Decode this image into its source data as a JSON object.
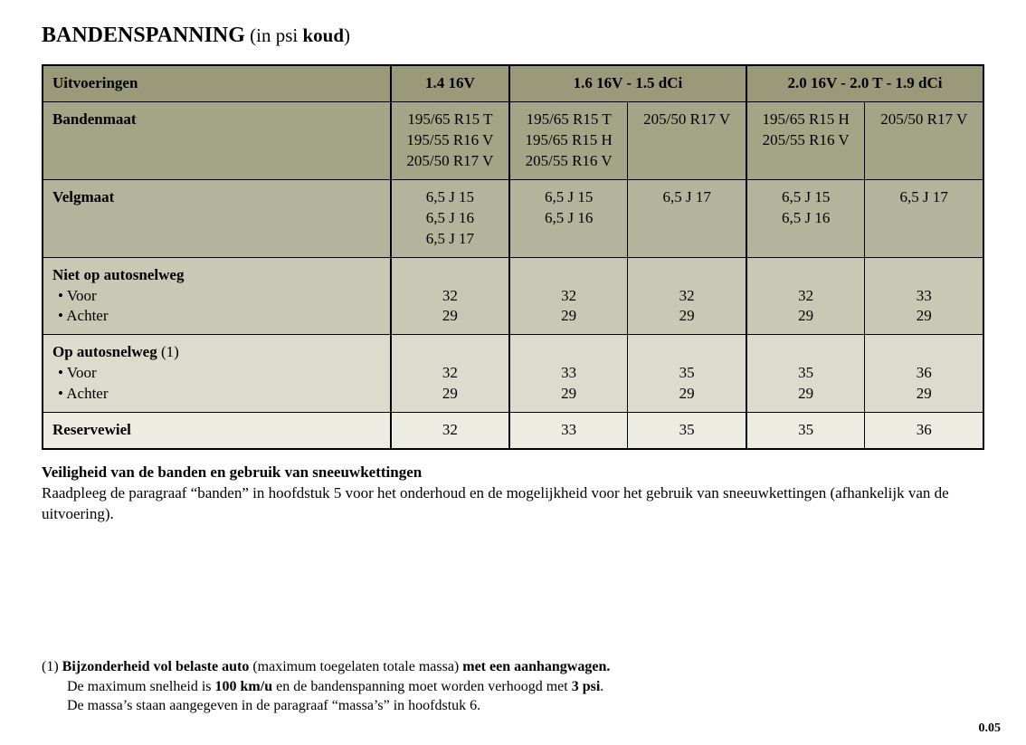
{
  "title": {
    "main": "BANDENSPANNING",
    "paren_open": " (in psi ",
    "paren_bold": "koud",
    "paren_close": ")"
  },
  "colors": {
    "row_shades": [
      "#9a9a7a",
      "#a4a486",
      "#b4b39b",
      "#c9c8b5",
      "#dcdbce",
      "#edece3"
    ],
    "border": "#000000",
    "text": "#000000",
    "page_bg": "#ffffff"
  },
  "table": {
    "columns": [
      "Uitvoeringen",
      "1.4 16V",
      "1.6 16V - 1.5 dCi",
      "2.0 16V - 2.0 T - 1.9 dCi"
    ],
    "col_spans": [
      1,
      1,
      2,
      2
    ],
    "rows": [
      {
        "label": "Bandenmaat",
        "cells": [
          "195/65 R15 T\n195/55 R16 V\n205/50 R17 V",
          "195/65 R15 T\n195/65 R15 H\n205/55 R16 V",
          "205/50 R17 V",
          "195/65 R15 H\n205/55 R16 V",
          "205/50 R17 V"
        ]
      },
      {
        "label": "Velgmaat",
        "cells": [
          "6,5 J 15\n6,5 J 16\n6,5 J 17",
          "6,5 J 15\n6,5 J 16",
          "6,5 J 17",
          "6,5 J 15\n6,5 J 16",
          "6,5 J 17"
        ]
      },
      {
        "label": "Niet op autosnelweg",
        "sub": [
          "• Voor",
          "• Achter"
        ],
        "cells": [
          "32\n29",
          "32\n29",
          "32\n29",
          "32\n29",
          "33\n29"
        ]
      },
      {
        "label": "Op autosnelweg",
        "label_suffix": " (1)",
        "sub": [
          "• Voor",
          "• Achter"
        ],
        "cells": [
          "32\n29",
          "33\n29",
          "35\n29",
          "35\n29",
          "36\n29"
        ]
      },
      {
        "label": "Reservewiel",
        "cells": [
          "32",
          "33",
          "35",
          "35",
          "36"
        ]
      }
    ]
  },
  "notes": {
    "heading": "Veiligheid van de banden en gebruik van sneeuwkettingen",
    "body": "Raadpleeg de paragraaf “banden” in hoofdstuk 5 voor het onderhoud en de mogelijkheid voor het gebruik van sneeuwkettingen (afhankelijk van de uitvoering)."
  },
  "footnote": {
    "prefix": "(1) ",
    "line1_a": "Bijzonderheid vol belaste auto",
    "line1_b": " (maximum toegelaten totale massa) ",
    "line1_c": "met een aanhangwagen.",
    "line2_a": "De maximum snelheid is ",
    "line2_b": "100 km/u",
    "line2_c": " en de bandenspanning moet worden verhoogd met ",
    "line2_d": "3 psi",
    "line2_e": ".",
    "line3": "De massa’s staan aangegeven in de paragraaf “massa’s” in hoofdstuk 6."
  },
  "page_number": "0.05"
}
